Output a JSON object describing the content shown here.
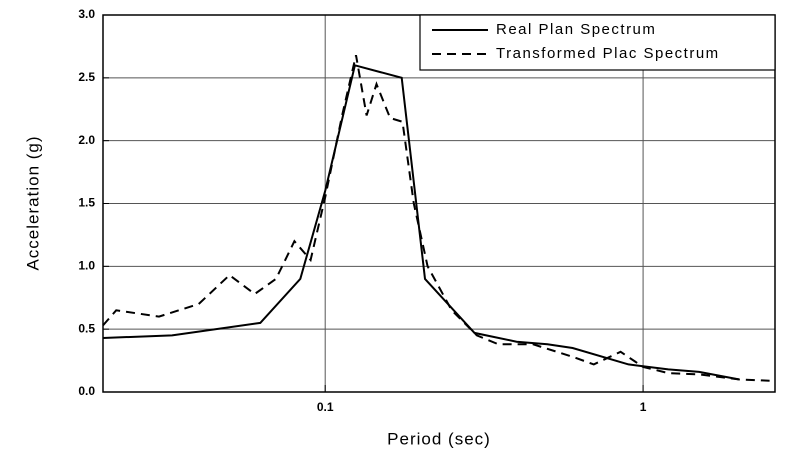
{
  "chart_data": {
    "type": "line",
    "xlabel": "Period (sec)",
    "ylabel": "Acceleration (g)",
    "xscale": "log",
    "xlim": [
      0.02,
      2.6
    ],
    "xticks": [
      0.1,
      1
    ],
    "ylim": [
      0,
      3
    ],
    "yticks": [
      {
        "value": 0,
        "label": "0.0"
      },
      {
        "value": 0.5,
        "label": "0.5"
      },
      {
        "value": 1,
        "label": "1.0"
      },
      {
        "value": 1.5,
        "label": "1.5"
      },
      {
        "value": 2,
        "label": "2.0"
      },
      {
        "value": 2.5,
        "label": "2.5"
      },
      {
        "value": 3,
        "label": "3.0"
      }
    ],
    "grid": true,
    "legend": "top-right",
    "series": [
      {
        "name": "Real Plan Spectrum",
        "color": "#000000",
        "dash": "solid",
        "x": [
          0.02,
          0.033,
          0.0625,
          0.0835,
          0.1,
          0.124,
          0.174,
          0.206,
          0.295,
          0.4,
          0.5,
          0.6,
          0.9,
          1.2,
          1.5,
          2.0
        ],
        "values": [
          0.43,
          0.45,
          0.55,
          0.9,
          1.6,
          2.6,
          2.5,
          0.9,
          0.47,
          0.4,
          0.38,
          0.35,
          0.22,
          0.18,
          0.16,
          0.1
        ]
      },
      {
        "name": "Transformed Plac Spectrum",
        "color": "#000000",
        "dash": "dashed",
        "x": [
          0.02,
          0.022,
          0.03,
          0.04,
          0.05,
          0.06,
          0.07,
          0.08,
          0.09,
          0.1,
          0.113,
          0.125,
          0.135,
          0.145,
          0.16,
          0.175,
          0.19,
          0.21,
          0.25,
          0.3,
          0.35,
          0.45,
          0.6,
          0.7,
          0.85,
          1.0,
          1.2,
          1.5,
          2.0,
          2.5
        ],
        "values": [
          0.53,
          0.65,
          0.6,
          0.7,
          0.93,
          0.78,
          0.9,
          1.2,
          1.05,
          1.55,
          2.2,
          2.68,
          2.2,
          2.45,
          2.18,
          2.15,
          1.5,
          1.0,
          0.65,
          0.45,
          0.38,
          0.38,
          0.28,
          0.22,
          0.32,
          0.2,
          0.15,
          0.14,
          0.1,
          0.09
        ]
      }
    ]
  }
}
